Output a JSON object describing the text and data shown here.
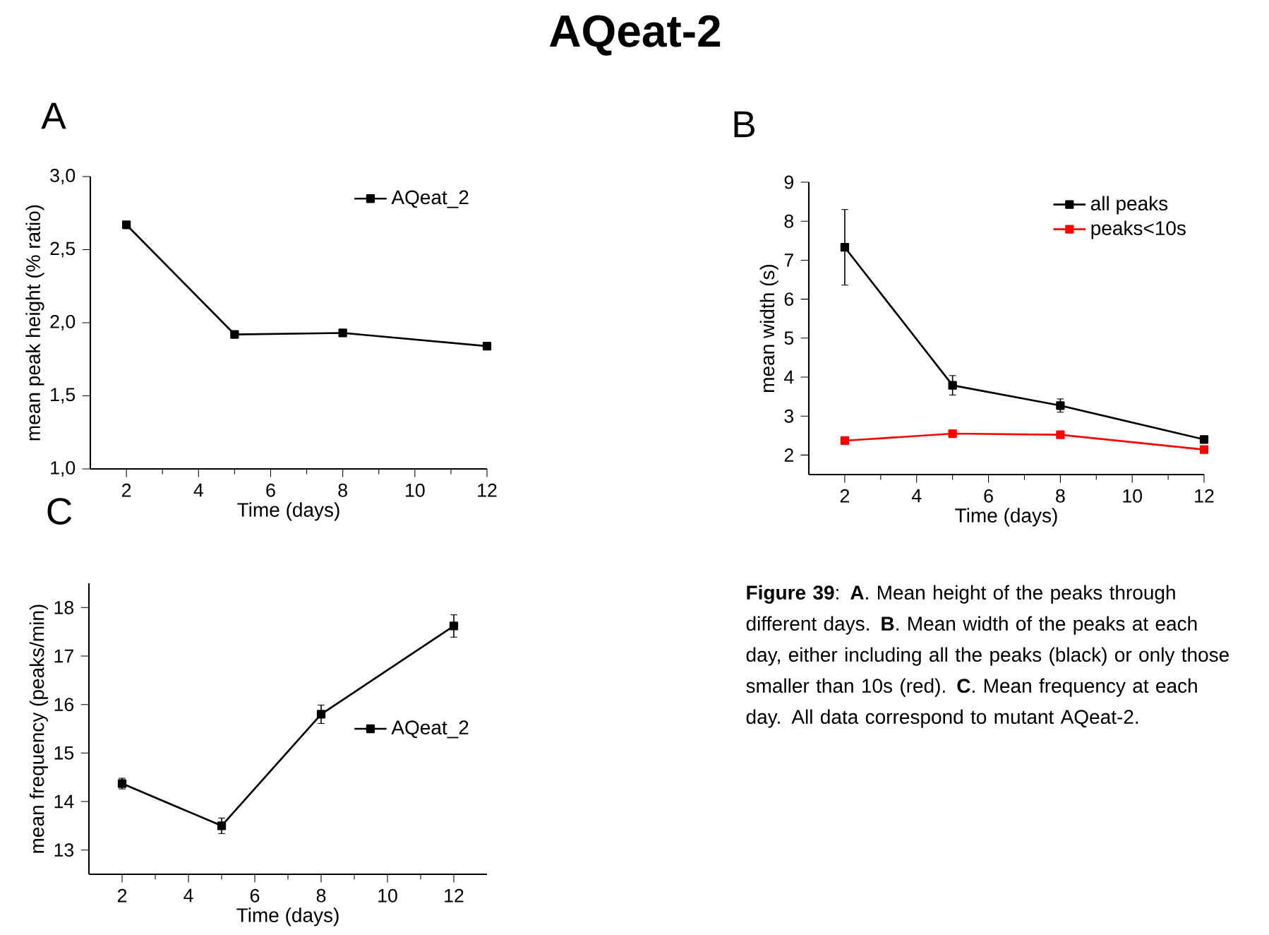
{
  "chart_data": [
    {
      "type": "line",
      "annotations": [
        "A"
      ],
      "xlabel": "Time (days)",
      "ylabel": "mean peak height (% ratio)",
      "x": [
        2,
        5,
        8,
        12
      ],
      "series": [
        {
          "name": "AQeat_2",
          "color": "#000000",
          "values": [
            2.67,
            1.92,
            1.93,
            1.84
          ]
        }
      ],
      "xlim": [
        1,
        12
      ],
      "ylim": [
        1,
        3
      ],
      "xticks": [
        2,
        4,
        6,
        8,
        10,
        12
      ],
      "yticks": [
        {
          "value": 1,
          "label": "1,0"
        },
        {
          "value": 1.5,
          "label": "1,5"
        },
        {
          "value": 2,
          "label": "2,0"
        },
        {
          "value": 2.5,
          "label": "2,5"
        },
        {
          "value": 3,
          "label": "3,0"
        }
      ],
      "legend": "top right",
      "marker": "square",
      "line_style": "solid"
    },
    {
      "type": "line",
      "annotations": [
        "B"
      ],
      "xlabel": "Time (days)",
      "ylabel": "mean width (s)",
      "x": [
        2,
        5,
        8,
        12
      ],
      "series": [
        {
          "name": "all peaks",
          "color": "#000000",
          "values": [
            7.33,
            3.79,
            3.27,
            2.4
          ],
          "errors": [
            0.97,
            0.25,
            0.17,
            0.05
          ]
        },
        {
          "name": "peaks<10s",
          "color": "#ff0000",
          "values": [
            2.37,
            2.55,
            2.52,
            2.14
          ]
        }
      ],
      "xlim": [
        1,
        12
      ],
      "ylim": [
        1.5,
        9
      ],
      "xticks": [
        2,
        4,
        6,
        8,
        10,
        12
      ],
      "yticks": [
        2,
        3,
        4,
        5,
        6,
        7,
        8,
        9
      ],
      "legend": "top right",
      "marker": "square",
      "line_style": "solid"
    },
    {
      "type": "line",
      "annotations": [
        "C"
      ],
      "xlabel": "Time (days)",
      "ylabel": "mean frequency (peaks/min)",
      "x": [
        2,
        5,
        8,
        12
      ],
      "series": [
        {
          "name": "AQeat_2",
          "color": "#000000",
          "values": [
            14.37,
            13.5,
            15.8,
            17.62
          ],
          "errors": [
            0.11,
            0.16,
            0.19,
            0.23
          ]
        }
      ],
      "xlim": [
        1,
        13
      ],
      "ylim": [
        12.5,
        18.5
      ],
      "xticks": [
        2,
        4,
        6,
        8,
        10,
        12
      ],
      "yticks": [
        13,
        14,
        15,
        16,
        17,
        18
      ],
      "legend": "right",
      "marker": "square",
      "line_style": "solid"
    },
    {
      "type": "other",
      "title": "AQeat-2",
      "annotations": [
        "**Figure 39**: **A**. Mean height of the peaks through different days. **B**. Mean width of the peaks at each day, either including all the peaks (black) or only those smaller than 10s (red). **C**. Mean frequency at each day. All data correspond to mutant AQeat-2."
      ]
    }
  ]
}
